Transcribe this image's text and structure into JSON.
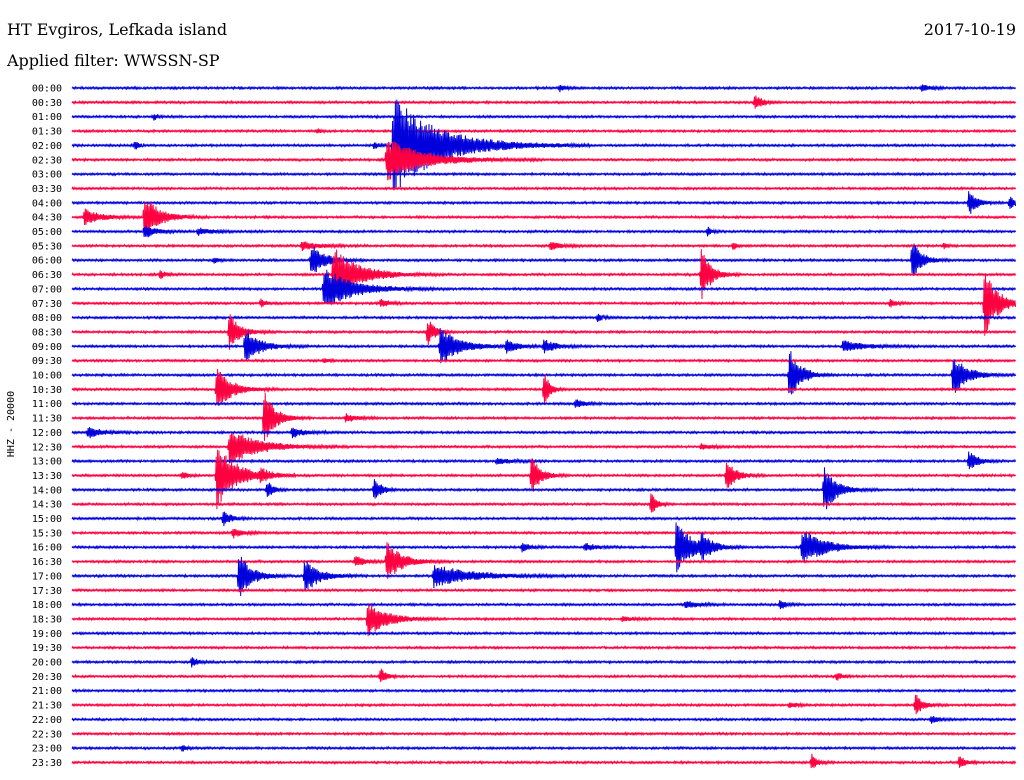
{
  "header": {
    "station": "HT Evgiros, Lefkada island",
    "filter": "Applied filter: WWSSN-SP",
    "date": "2017-10-19"
  },
  "colors": {
    "trace_a": "#0000dd",
    "trace_b": "#ff0040",
    "text": "#000000",
    "background": "#ffffff"
  },
  "chart_data": {
    "type": "line",
    "channel_label": "HHZ - 20000",
    "row_interval_minutes": 30,
    "time_labels": [
      "00:00",
      "00:30",
      "01:00",
      "01:30",
      "02:00",
      "02:30",
      "03:00",
      "03:30",
      "04:00",
      "04:30",
      "05:00",
      "05:30",
      "06:00",
      "06:30",
      "07:00",
      "07:30",
      "08:00",
      "08:30",
      "09:00",
      "09:30",
      "10:00",
      "10:30",
      "11:00",
      "11:30",
      "12:00",
      "12:30",
      "13:00",
      "13:30",
      "14:00",
      "14:30",
      "15:00",
      "15:30",
      "16:00",
      "16:30",
      "17:00",
      "17:30",
      "18:00",
      "18:30",
      "19:00",
      "19:30",
      "20:00",
      "20:30",
      "21:00",
      "21:30",
      "22:00",
      "22:30",
      "23:00",
      "23:30"
    ],
    "events": [
      {
        "row": 0,
        "minute": 15.5,
        "amp": 0.25,
        "dur": 0.3
      },
      {
        "row": 0,
        "minute": 27.0,
        "amp": 0.35,
        "dur": 0.4
      },
      {
        "row": 1,
        "minute": 21.7,
        "amp": 0.6,
        "dur": 0.4
      },
      {
        "row": 2,
        "minute": 2.6,
        "amp": 0.25,
        "dur": 0.2
      },
      {
        "row": 3,
        "minute": 7.8,
        "amp": 0.15,
        "dur": 0.2
      },
      {
        "row": 4,
        "minute": 2.0,
        "amp": 0.35,
        "dur": 0.2
      },
      {
        "row": 4,
        "minute": 9.6,
        "amp": 0.3,
        "dur": 0.2
      },
      {
        "row": 4,
        "minute": 10.2,
        "amp": 3.5,
        "dur": 2.5
      },
      {
        "row": 5,
        "minute": 10.0,
        "amp": 1.5,
        "dur": 2.0
      },
      {
        "row": 8,
        "minute": 28.5,
        "amp": 1.0,
        "dur": 0.4
      },
      {
        "row": 8,
        "minute": 29.8,
        "amp": 0.5,
        "dur": 0.3
      },
      {
        "row": 9,
        "minute": 0.4,
        "amp": 0.6,
        "dur": 0.8
      },
      {
        "row": 9,
        "minute": 2.3,
        "amp": 1.6,
        "dur": 0.8
      },
      {
        "row": 10,
        "minute": 2.3,
        "amp": 0.5,
        "dur": 0.6
      },
      {
        "row": 10,
        "minute": 4.0,
        "amp": 0.25,
        "dur": 0.8
      },
      {
        "row": 10,
        "minute": 20.2,
        "amp": 0.3,
        "dur": 0.2
      },
      {
        "row": 11,
        "minute": 7.3,
        "amp": 0.3,
        "dur": 1.0
      },
      {
        "row": 11,
        "minute": 15.2,
        "amp": 0.3,
        "dur": 0.6
      },
      {
        "row": 11,
        "minute": 21.0,
        "amp": 0.3,
        "dur": 0.2
      },
      {
        "row": 11,
        "minute": 27.7,
        "amp": 0.2,
        "dur": 0.2
      },
      {
        "row": 12,
        "minute": 7.6,
        "amp": 1.2,
        "dur": 0.7
      },
      {
        "row": 12,
        "minute": 4.5,
        "amp": 0.2,
        "dur": 0.3
      },
      {
        "row": 12,
        "minute": 26.7,
        "amp": 1.5,
        "dur": 0.5
      },
      {
        "row": 13,
        "minute": 2.8,
        "amp": 0.3,
        "dur": 0.3
      },
      {
        "row": 13,
        "minute": 8.3,
        "amp": 2.0,
        "dur": 1.4
      },
      {
        "row": 13,
        "minute": 20.0,
        "amp": 2.0,
        "dur": 0.5
      },
      {
        "row": 14,
        "minute": 8.0,
        "amp": 1.5,
        "dur": 1.6
      },
      {
        "row": 15,
        "minute": 6.0,
        "amp": 0.3,
        "dur": 0.3
      },
      {
        "row": 15,
        "minute": 9.8,
        "amp": 0.3,
        "dur": 0.5
      },
      {
        "row": 15,
        "minute": 26.0,
        "amp": 0.3,
        "dur": 0.3
      },
      {
        "row": 15,
        "minute": 29.0,
        "amp": 2.5,
        "dur": 0.7
      },
      {
        "row": 16,
        "minute": 16.7,
        "amp": 0.3,
        "dur": 0.3
      },
      {
        "row": 17,
        "minute": 5.0,
        "amp": 1.3,
        "dur": 0.6
      },
      {
        "row": 17,
        "minute": 11.3,
        "amp": 1.0,
        "dur": 0.4
      },
      {
        "row": 18,
        "minute": 5.5,
        "amp": 1.3,
        "dur": 0.8
      },
      {
        "row": 18,
        "minute": 11.7,
        "amp": 1.4,
        "dur": 1.0
      },
      {
        "row": 18,
        "minute": 13.8,
        "amp": 0.5,
        "dur": 0.6
      },
      {
        "row": 18,
        "minute": 15.0,
        "amp": 0.5,
        "dur": 0.6
      },
      {
        "row": 18,
        "minute": 24.5,
        "amp": 0.4,
        "dur": 1.2
      },
      {
        "row": 19,
        "minute": 8.0,
        "amp": 0.15,
        "dur": 0.3
      },
      {
        "row": 20,
        "minute": 22.8,
        "amp": 2.0,
        "dur": 0.6
      },
      {
        "row": 20,
        "minute": 28.0,
        "amp": 1.4,
        "dur": 0.8
      },
      {
        "row": 21,
        "minute": 4.6,
        "amp": 1.5,
        "dur": 0.8
      },
      {
        "row": 21,
        "minute": 15.0,
        "amp": 1.4,
        "dur": 0.3
      },
      {
        "row": 22,
        "minute": 16.0,
        "amp": 0.3,
        "dur": 0.5
      },
      {
        "row": 23,
        "minute": 6.1,
        "amp": 2.0,
        "dur": 0.6
      },
      {
        "row": 23,
        "minute": 8.7,
        "amp": 0.3,
        "dur": 0.6
      },
      {
        "row": 24,
        "minute": 0.5,
        "amp": 0.4,
        "dur": 0.8
      },
      {
        "row": 24,
        "minute": 7.0,
        "amp": 0.4,
        "dur": 0.6
      },
      {
        "row": 25,
        "minute": 5.0,
        "amp": 1.3,
        "dur": 1.5
      },
      {
        "row": 25,
        "minute": 20.0,
        "amp": 0.2,
        "dur": 0.6
      },
      {
        "row": 26,
        "minute": 13.5,
        "amp": 0.2,
        "dur": 0.8
      },
      {
        "row": 26,
        "minute": 28.5,
        "amp": 0.7,
        "dur": 0.5
      },
      {
        "row": 27,
        "minute": 3.5,
        "amp": 0.3,
        "dur": 0.3
      },
      {
        "row": 27,
        "minute": 4.6,
        "amp": 2.5,
        "dur": 1.0
      },
      {
        "row": 27,
        "minute": 6.0,
        "amp": 0.4,
        "dur": 0.5
      },
      {
        "row": 27,
        "minute": 14.6,
        "amp": 1.4,
        "dur": 0.5
      },
      {
        "row": 27,
        "minute": 20.8,
        "amp": 1.2,
        "dur": 0.5
      },
      {
        "row": 28,
        "minute": 6.2,
        "amp": 0.7,
        "dur": 0.3
      },
      {
        "row": 28,
        "minute": 9.6,
        "amp": 0.9,
        "dur": 0.4
      },
      {
        "row": 28,
        "minute": 23.9,
        "amp": 1.6,
        "dur": 0.7
      },
      {
        "row": 29,
        "minute": 18.4,
        "amp": 0.8,
        "dur": 0.3
      },
      {
        "row": 30,
        "minute": 4.8,
        "amp": 0.6,
        "dur": 0.4
      },
      {
        "row": 31,
        "minute": 5.1,
        "amp": 0.4,
        "dur": 0.5
      },
      {
        "row": 32,
        "minute": 19.2,
        "amp": 1.8,
        "dur": 0.9
      },
      {
        "row": 32,
        "minute": 20.0,
        "amp": 0.8,
        "dur": 0.5
      },
      {
        "row": 32,
        "minute": 23.2,
        "amp": 1.3,
        "dur": 1.2
      },
      {
        "row": 32,
        "minute": 16.3,
        "amp": 0.3,
        "dur": 0.6
      },
      {
        "row": 32,
        "minute": 14.3,
        "amp": 0.3,
        "dur": 0.4
      },
      {
        "row": 33,
        "minute": 10.0,
        "amp": 1.5,
        "dur": 0.8
      },
      {
        "row": 33,
        "minute": 9.0,
        "amp": 0.4,
        "dur": 0.5
      },
      {
        "row": 34,
        "minute": 5.3,
        "amp": 1.6,
        "dur": 0.7
      },
      {
        "row": 34,
        "minute": 7.4,
        "amp": 1.2,
        "dur": 0.8
      },
      {
        "row": 34,
        "minute": 11.5,
        "amp": 0.8,
        "dur": 2.0
      },
      {
        "row": 36,
        "minute": 19.5,
        "amp": 0.3,
        "dur": 0.6
      },
      {
        "row": 36,
        "minute": 22.5,
        "amp": 0.4,
        "dur": 0.3
      },
      {
        "row": 37,
        "minute": 9.4,
        "amp": 1.3,
        "dur": 1.0
      },
      {
        "row": 37,
        "minute": 17.5,
        "amp": 0.2,
        "dur": 0.6
      },
      {
        "row": 40,
        "minute": 3.8,
        "amp": 0.4,
        "dur": 0.3
      },
      {
        "row": 41,
        "minute": 9.8,
        "amp": 0.6,
        "dur": 0.3
      },
      {
        "row": 41,
        "minute": 24.3,
        "amp": 0.3,
        "dur": 0.3
      },
      {
        "row": 43,
        "minute": 26.8,
        "amp": 0.8,
        "dur": 0.4
      },
      {
        "row": 43,
        "minute": 22.8,
        "amp": 0.2,
        "dur": 0.4
      },
      {
        "row": 44,
        "minute": 27.3,
        "amp": 0.3,
        "dur": 0.4
      },
      {
        "row": 46,
        "minute": 3.5,
        "amp": 0.3,
        "dur": 0.2
      },
      {
        "row": 47,
        "minute": 23.5,
        "amp": 0.6,
        "dur": 0.3
      },
      {
        "row": 47,
        "minute": 28.2,
        "amp": 0.6,
        "dur": 0.3
      }
    ],
    "grid": false,
    "legend": "none"
  }
}
